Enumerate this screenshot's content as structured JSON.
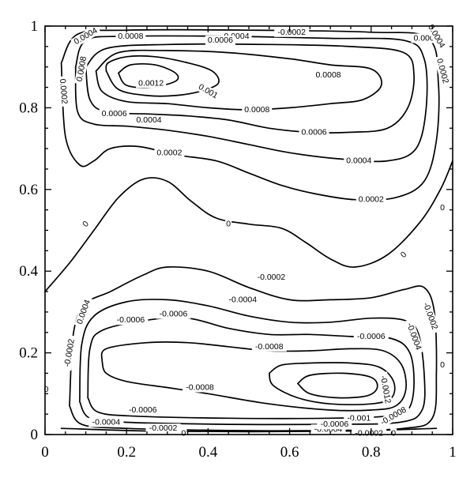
{
  "chart_data": {
    "type": "contour",
    "title": "",
    "xlabel": "",
    "ylabel": "",
    "xlim": [
      0,
      1
    ],
    "ylim": [
      0,
      1
    ],
    "xticks": [
      "0",
      "0.2",
      "0.4",
      "0.6",
      "0.8",
      "1"
    ],
    "yticks": [
      "0",
      "0.2",
      "0.4",
      "0.6",
      "0.8",
      "1"
    ],
    "levels": [
      "0.0012",
      "0.001",
      "0.0008",
      "0.0006",
      "0.0004",
      "0.0002",
      "0",
      "-0.0002",
      "-0.0004",
      "-0.0006",
      "-0.0008",
      "-0.001",
      "-0.0012"
    ],
    "contours": [
      {
        "level": "0",
        "points": [
          [
            0,
            0.35
          ],
          [
            0.06,
            0.42
          ],
          [
            0.12,
            0.5
          ],
          [
            0.18,
            0.58
          ],
          [
            0.24,
            0.625
          ],
          [
            0.3,
            0.62
          ],
          [
            0.36,
            0.57
          ],
          [
            0.42,
            0.53
          ],
          [
            0.5,
            0.515
          ],
          [
            0.58,
            0.505
          ],
          [
            0.64,
            0.47
          ],
          [
            0.7,
            0.43
          ],
          [
            0.76,
            0.41
          ],
          [
            0.84,
            0.44
          ],
          [
            0.92,
            0.52
          ],
          [
            0.97,
            0.6
          ],
          [
            1.0,
            0.67
          ]
        ]
      },
      {
        "level": "0.0002",
        "points": [
          [
            0.04,
            0.91
          ],
          [
            0.05,
            0.73
          ],
          [
            0.085,
            0.66
          ],
          [
            0.12,
            0.67
          ],
          [
            0.16,
            0.7
          ],
          [
            0.23,
            0.705
          ],
          [
            0.32,
            0.685
          ],
          [
            0.42,
            0.67
          ],
          [
            0.5,
            0.64
          ],
          [
            0.58,
            0.61
          ],
          [
            0.66,
            0.59
          ],
          [
            0.76,
            0.575
          ],
          [
            0.86,
            0.58
          ],
          [
            0.93,
            0.62
          ],
          [
            0.96,
            0.72
          ],
          [
            0.965,
            0.86
          ],
          [
            0.94,
            0.97
          ],
          [
            0.8,
            0.985
          ],
          [
            0.5,
            0.99
          ],
          [
            0.2,
            0.99
          ],
          [
            0.08,
            0.98
          ],
          [
            0.04,
            0.91
          ]
        ]
      },
      {
        "level": "0.0004",
        "points": [
          [
            0.075,
            0.9
          ],
          [
            0.08,
            0.79
          ],
          [
            0.12,
            0.76
          ],
          [
            0.2,
            0.755
          ],
          [
            0.3,
            0.745
          ],
          [
            0.4,
            0.73
          ],
          [
            0.5,
            0.71
          ],
          [
            0.6,
            0.69
          ],
          [
            0.72,
            0.675
          ],
          [
            0.84,
            0.67
          ],
          [
            0.91,
            0.7
          ],
          [
            0.935,
            0.8
          ],
          [
            0.93,
            0.92
          ],
          [
            0.88,
            0.965
          ],
          [
            0.7,
            0.97
          ],
          [
            0.45,
            0.975
          ],
          [
            0.2,
            0.975
          ],
          [
            0.1,
            0.965
          ],
          [
            0.075,
            0.9
          ]
        ]
      },
      {
        "level": "0.0006",
        "points": [
          [
            0.1,
            0.9
          ],
          [
            0.11,
            0.82
          ],
          [
            0.15,
            0.79
          ],
          [
            0.25,
            0.785
          ],
          [
            0.35,
            0.78
          ],
          [
            0.45,
            0.77
          ],
          [
            0.55,
            0.75
          ],
          [
            0.65,
            0.74
          ],
          [
            0.75,
            0.74
          ],
          [
            0.84,
            0.75
          ],
          [
            0.89,
            0.8
          ],
          [
            0.905,
            0.88
          ],
          [
            0.88,
            0.935
          ],
          [
            0.75,
            0.95
          ],
          [
            0.55,
            0.955
          ],
          [
            0.3,
            0.955
          ],
          [
            0.15,
            0.945
          ],
          [
            0.1,
            0.9
          ]
        ]
      },
      {
        "level": "0.0008",
        "points": [
          [
            0.125,
            0.89
          ],
          [
            0.14,
            0.84
          ],
          [
            0.2,
            0.815
          ],
          [
            0.3,
            0.81
          ],
          [
            0.4,
            0.8
          ],
          [
            0.5,
            0.795
          ],
          [
            0.6,
            0.8
          ],
          [
            0.7,
            0.81
          ],
          [
            0.78,
            0.82
          ],
          [
            0.825,
            0.855
          ],
          [
            0.8,
            0.895
          ],
          [
            0.7,
            0.905
          ],
          [
            0.6,
            0.92
          ],
          [
            0.45,
            0.935
          ],
          [
            0.3,
            0.94
          ],
          [
            0.18,
            0.935
          ],
          [
            0.125,
            0.89
          ]
        ]
      },
      {
        "level": "0.001",
        "points": [
          [
            0.15,
            0.89
          ],
          [
            0.18,
            0.845
          ],
          [
            0.25,
            0.83
          ],
          [
            0.32,
            0.83
          ],
          [
            0.38,
            0.84
          ],
          [
            0.425,
            0.86
          ],
          [
            0.41,
            0.89
          ],
          [
            0.35,
            0.91
          ],
          [
            0.27,
            0.925
          ],
          [
            0.2,
            0.925
          ],
          [
            0.155,
            0.91
          ],
          [
            0.15,
            0.89
          ]
        ]
      },
      {
        "level": "0.0012",
        "points": [
          [
            0.18,
            0.885
          ],
          [
            0.2,
            0.855
          ],
          [
            0.26,
            0.85
          ],
          [
            0.32,
            0.865
          ],
          [
            0.32,
            0.885
          ],
          [
            0.27,
            0.905
          ],
          [
            0.21,
            0.905
          ],
          [
            0.18,
            0.885
          ]
        ]
      },
      {
        "level": "-0.0002",
        "points": [
          [
            0.06,
            0.07
          ],
          [
            0.07,
            0.25
          ],
          [
            0.1,
            0.32
          ],
          [
            0.16,
            0.35
          ],
          [
            0.24,
            0.39
          ],
          [
            0.3,
            0.41
          ],
          [
            0.4,
            0.4
          ],
          [
            0.5,
            0.36
          ],
          [
            0.6,
            0.33
          ],
          [
            0.7,
            0.33
          ],
          [
            0.8,
            0.335
          ],
          [
            0.88,
            0.355
          ],
          [
            0.93,
            0.36
          ],
          [
            0.955,
            0.3
          ],
          [
            0.96,
            0.15
          ],
          [
            0.95,
            0.04
          ],
          [
            0.88,
            0.015
          ],
          [
            0.7,
            0.01
          ],
          [
            0.45,
            0.01
          ],
          [
            0.2,
            0.015
          ],
          [
            0.09,
            0.025
          ],
          [
            0.06,
            0.07
          ]
        ]
      },
      {
        "level": "-0.0004",
        "points": [
          [
            0.085,
            0.08
          ],
          [
            0.09,
            0.22
          ],
          [
            0.12,
            0.29
          ],
          [
            0.2,
            0.325
          ],
          [
            0.3,
            0.33
          ],
          [
            0.4,
            0.315
          ],
          [
            0.5,
            0.29
          ],
          [
            0.6,
            0.275
          ],
          [
            0.7,
            0.275
          ],
          [
            0.8,
            0.285
          ],
          [
            0.88,
            0.28
          ],
          [
            0.915,
            0.25
          ],
          [
            0.93,
            0.15
          ],
          [
            0.925,
            0.06
          ],
          [
            0.87,
            0.03
          ],
          [
            0.7,
            0.025
          ],
          [
            0.45,
            0.025
          ],
          [
            0.2,
            0.03
          ],
          [
            0.11,
            0.04
          ],
          [
            0.085,
            0.08
          ]
        ]
      },
      {
        "level": "-0.0006",
        "points": [
          [
            0.105,
            0.09
          ],
          [
            0.11,
            0.21
          ],
          [
            0.14,
            0.255
          ],
          [
            0.25,
            0.28
          ],
          [
            0.35,
            0.285
          ],
          [
            0.45,
            0.26
          ],
          [
            0.55,
            0.245
          ],
          [
            0.65,
            0.245
          ],
          [
            0.75,
            0.24
          ],
          [
            0.85,
            0.235
          ],
          [
            0.895,
            0.2
          ],
          [
            0.905,
            0.12
          ],
          [
            0.89,
            0.06
          ],
          [
            0.84,
            0.045
          ],
          [
            0.7,
            0.04
          ],
          [
            0.45,
            0.04
          ],
          [
            0.22,
            0.045
          ],
          [
            0.13,
            0.055
          ],
          [
            0.105,
            0.09
          ]
        ]
      },
      {
        "level": "-0.0008",
        "points": [
          [
            0.14,
            0.18
          ],
          [
            0.15,
            0.21
          ],
          [
            0.25,
            0.225
          ],
          [
            0.35,
            0.225
          ],
          [
            0.45,
            0.215
          ],
          [
            0.55,
            0.205
          ],
          [
            0.65,
            0.205
          ],
          [
            0.75,
            0.21
          ],
          [
            0.83,
            0.205
          ],
          [
            0.875,
            0.17
          ],
          [
            0.885,
            0.11
          ],
          [
            0.86,
            0.07
          ],
          [
            0.8,
            0.06
          ],
          [
            0.7,
            0.06
          ],
          [
            0.55,
            0.075
          ],
          [
            0.4,
            0.1
          ],
          [
            0.3,
            0.115
          ],
          [
            0.2,
            0.13
          ],
          [
            0.15,
            0.15
          ],
          [
            0.14,
            0.18
          ]
        ]
      },
      {
        "level": "-0.001",
        "points": [
          [
            0.55,
            0.15
          ],
          [
            0.58,
            0.17
          ],
          [
            0.65,
            0.175
          ],
          [
            0.75,
            0.175
          ],
          [
            0.82,
            0.165
          ],
          [
            0.855,
            0.13
          ],
          [
            0.85,
            0.09
          ],
          [
            0.8,
            0.075
          ],
          [
            0.7,
            0.075
          ],
          [
            0.62,
            0.09
          ],
          [
            0.56,
            0.12
          ],
          [
            0.55,
            0.15
          ]
        ]
      },
      {
        "level": "-0.0012",
        "points": [
          [
            0.62,
            0.125
          ],
          [
            0.65,
            0.145
          ],
          [
            0.73,
            0.15
          ],
          [
            0.8,
            0.14
          ],
          [
            0.815,
            0.115
          ],
          [
            0.79,
            0.095
          ],
          [
            0.72,
            0.09
          ],
          [
            0.65,
            0.1
          ],
          [
            0.62,
            0.125
          ]
        ]
      },
      {
        "level": "0",
        "points": [
          [
            0.04,
            0.015
          ],
          [
            0.3,
            0.008
          ],
          [
            0.7,
            0.008
          ],
          [
            0.96,
            0.015
          ]
        ]
      }
    ],
    "labels": [
      {
        "text": "0.0004",
        "x": 0.1,
        "y": 0.975,
        "rot": -30
      },
      {
        "text": "0.0008",
        "x": 0.21,
        "y": 0.975,
        "rot": 0
      },
      {
        "text": "0.0004",
        "x": 0.47,
        "y": 0.975,
        "rot": 0
      },
      {
        "text": "0.0006",
        "x": 0.43,
        "y": 0.965,
        "rot": 0
      },
      {
        "text": "-0.0002",
        "x": 0.605,
        "y": 0.985,
        "rot": 0
      },
      {
        "text": "0.0006",
        "x": 0.935,
        "y": 0.97,
        "rot": 0
      },
      {
        "text": "0.0004",
        "x": 0.96,
        "y": 0.975,
        "rot": 60
      },
      {
        "text": "0.0008",
        "x": 0.09,
        "y": 0.895,
        "rot": -80
      },
      {
        "text": "0.0002",
        "x": 0.975,
        "y": 0.89,
        "rot": 75
      },
      {
        "text": "0.0002",
        "x": 0.045,
        "y": 0.84,
        "rot": 85
      },
      {
        "text": "0.0012",
        "x": 0.26,
        "y": 0.86,
        "rot": 0
      },
      {
        "text": "0.001",
        "x": 0.4,
        "y": 0.84,
        "rot": 30
      },
      {
        "text": "0.0008",
        "x": 0.695,
        "y": 0.88,
        "rot": 0
      },
      {
        "text": "0.0008",
        "x": 0.52,
        "y": 0.795,
        "rot": 0
      },
      {
        "text": "0.0006",
        "x": 0.17,
        "y": 0.785,
        "rot": 0
      },
      {
        "text": "0.0004",
        "x": 0.255,
        "y": 0.77,
        "rot": 0
      },
      {
        "text": "0.0006",
        "x": 0.66,
        "y": 0.74,
        "rot": 0
      },
      {
        "text": "0.0002",
        "x": 0.305,
        "y": 0.69,
        "rot": 0
      },
      {
        "text": "0.0004",
        "x": 0.77,
        "y": 0.67,
        "rot": 0
      },
      {
        "text": "0.0002",
        "x": 0.8,
        "y": 0.575,
        "rot": 0
      },
      {
        "text": "0",
        "x": 0.975,
        "y": 0.555,
        "rot": 0
      },
      {
        "text": "0",
        "x": 0.1,
        "y": 0.515,
        "rot": -45
      },
      {
        "text": "0",
        "x": 0.45,
        "y": 0.515,
        "rot": 0
      },
      {
        "text": "0",
        "x": 0.88,
        "y": 0.44,
        "rot": -45
      },
      {
        "text": "-0.0002",
        "x": 0.555,
        "y": 0.385,
        "rot": 0
      },
      {
        "text": "-0.0004",
        "x": 0.485,
        "y": 0.33,
        "rot": 0
      },
      {
        "text": "0.0004",
        "x": 0.095,
        "y": 0.3,
        "rot": -70
      },
      {
        "text": "-0.0006",
        "x": 0.21,
        "y": 0.28,
        "rot": 0
      },
      {
        "text": "-0.0006",
        "x": 0.315,
        "y": 0.295,
        "rot": 0
      },
      {
        "text": "-0.0002",
        "x": 0.945,
        "y": 0.29,
        "rot": 70
      },
      {
        "text": "-0.0004",
        "x": 0.905,
        "y": 0.24,
        "rot": 70
      },
      {
        "text": "-0.0002",
        "x": 0.06,
        "y": 0.2,
        "rot": -80
      },
      {
        "text": "-0.0008",
        "x": 0.55,
        "y": 0.215,
        "rot": 0
      },
      {
        "text": "-0.0006",
        "x": 0.8,
        "y": 0.24,
        "rot": 0
      },
      {
        "text": "0",
        "x": 0.003,
        "y": 0.11,
        "rot": 0
      },
      {
        "text": "0",
        "x": 0.975,
        "y": 0.17,
        "rot": 0
      },
      {
        "text": "-0.0008",
        "x": 0.38,
        "y": 0.115,
        "rot": 0
      },
      {
        "text": "-0.0012",
        "x": 0.835,
        "y": 0.11,
        "rot": 80
      },
      {
        "text": "-0.0006",
        "x": 0.24,
        "y": 0.06,
        "rot": 0
      },
      {
        "text": "-0.001",
        "x": 0.77,
        "y": 0.04,
        "rot": 0
      },
      {
        "text": "-0.0008",
        "x": 0.855,
        "y": 0.045,
        "rot": -30
      },
      {
        "text": "-0.0004",
        "x": 0.15,
        "y": 0.03,
        "rot": 0
      },
      {
        "text": "-0.0002",
        "x": 0.29,
        "y": 0.015,
        "rot": 0
      },
      {
        "text": "0",
        "x": 0.34,
        "y": 0.003,
        "rot": 0
      },
      {
        "text": "-0.0004",
        "x": 0.695,
        "y": 0.013,
        "rot": 0
      },
      {
        "text": "-0.0006",
        "x": 0.71,
        "y": 0.025,
        "rot": 0
      },
      {
        "text": "-0.0002",
        "x": 0.795,
        "y": 0.003,
        "rot": 0
      },
      {
        "text": "0",
        "x": 0.855,
        "y": 0.003,
        "rot": 0
      }
    ],
    "grid": false
  }
}
